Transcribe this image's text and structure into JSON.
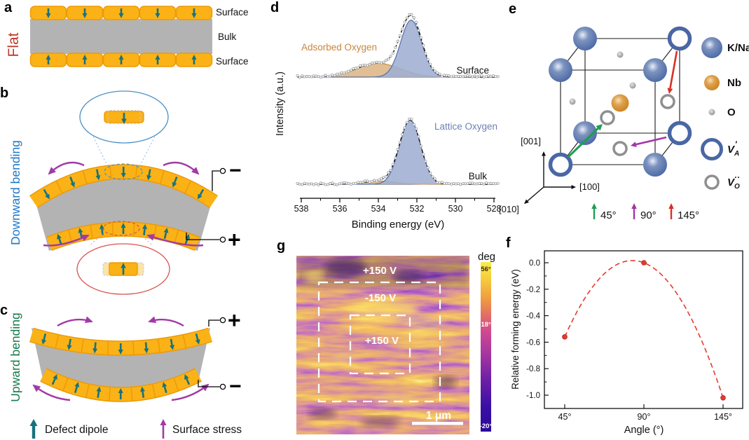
{
  "colors": {
    "surface_block": "#FBB216",
    "surface_block_edge": "#EE9A05",
    "pale_block": "#FBE3AC",
    "bulk_gray": "#B3B3B3",
    "defect_dipole": "#16727F",
    "surface_stress": "#A23AA6",
    "flat_label": "#C0392B",
    "downward_label": "#1E78C8",
    "upward_label": "#177A4D",
    "lattice_fill": "#9FAED2",
    "lattice_line": "#5470A8",
    "lattice_text": "#6C82B5",
    "adsorbed_fill": "#DDB584",
    "adsorbed_line": "#C98F4E",
    "adsorbed_text": "#C9863C",
    "kna_blue": "#4A67A5",
    "nb_orange": "#D2882B",
    "o_gray": "#8F8F8F",
    "arrow_45": "#1E9E50",
    "arrow_90": "#A434A8",
    "arrow_145": "#D93025",
    "f_red": "#E8392E",
    "colorbar_top": "#F8EC4E",
    "colorbar_mid": "#CC4792",
    "colorbar_bottom": "#2A0899"
  },
  "panels": {
    "a": {
      "letter": "a",
      "rot_label": "Flat",
      "surface_top": "Surface",
      "bulk": "Bulk",
      "surface_bottom": "Surface"
    },
    "b": {
      "letter": "b",
      "rot_label": "Downward bending",
      "terminal_top": "−",
      "terminal_bottom": "+"
    },
    "c": {
      "letter": "c",
      "rot_label": "Upward bending",
      "terminal_top": "+",
      "terminal_bottom": "−"
    },
    "legend": {
      "defect_dipole": "Defect dipole",
      "surface_stress": "Surface stress"
    },
    "d": {
      "letter": "d",
      "label_adsorbed": "Adsorbed Oxygen",
      "label_lattice": "Lattice Oxygen",
      "label_surface": "Surface",
      "label_bulk": "Bulk"
    },
    "e": {
      "letter": "e",
      "axis_z": "[001]",
      "axis_x": "[100]",
      "axis_y": "[010]",
      "legend": [
        {
          "label": "K/Na"
        },
        {
          "label": "Nb"
        },
        {
          "label": "O"
        }
      ],
      "vacancy_a": {
        "sym": "V",
        "sub": "A",
        "sup": "′"
      },
      "vacancy_o": {
        "sym": "V",
        "sub": "O",
        "sup": "··"
      },
      "angles": [
        {
          "label": "45°"
        },
        {
          "label": "90°"
        },
        {
          "label": "145°"
        }
      ]
    },
    "f": {
      "letter": "f"
    },
    "g": {
      "letter": "g",
      "label_top": "+150 V",
      "label_mid": "-150 V",
      "label_inner": "+150 V",
      "scalebar": "1 μm",
      "cb_title": "deg",
      "cb_top": "56°",
      "cb_mid": "18°",
      "cb_bottom": "-20°"
    }
  },
  "chart_data": [
    {
      "id": "xps",
      "panel": "d",
      "type": "area",
      "title": "O 1s XPS spectra, surface vs bulk",
      "xlabel": "Binding energy (eV)",
      "ylabel": "Intensity (a.u.)",
      "x_range": [
        538,
        528
      ],
      "x_ticks": [
        538,
        536,
        534,
        532,
        530,
        528
      ],
      "x_axis_reversed": true,
      "spectra": [
        {
          "name": "Surface",
          "peaks": [
            {
              "name": "Lattice Oxygen",
              "center": 532.3,
              "sigma": 0.55,
              "amplitude": 1.0
            },
            {
              "name": "Adsorbed Oxygen",
              "center": 534.0,
              "sigma": 1.15,
              "amplitude": 0.24
            }
          ]
        },
        {
          "name": "Bulk",
          "peaks": [
            {
              "name": "Lattice Oxygen",
              "center": 532.35,
              "sigma": 0.55,
              "amplitude": 1.0
            },
            {
              "name": "Adsorbed Oxygen",
              "center": 533.9,
              "sigma": 0.8,
              "amplitude": 0.05
            }
          ]
        }
      ]
    },
    {
      "id": "forming-energy",
      "panel": "f",
      "type": "scatter",
      "xlabel": "Angle (°)",
      "ylabel": "Relative forming energy (eV)",
      "x_categories": [
        "45°",
        "90°",
        "145°"
      ],
      "values": [
        -0.56,
        0.0,
        -1.02
      ],
      "y_ticks": [
        0.0,
        -0.2,
        -0.4,
        -0.6,
        -0.8,
        -1.0
      ],
      "ylim": [
        -1.12,
        0.09
      ],
      "curve": "dashed parabolic fit through points",
      "grid": false,
      "legend_position": "none"
    }
  ]
}
